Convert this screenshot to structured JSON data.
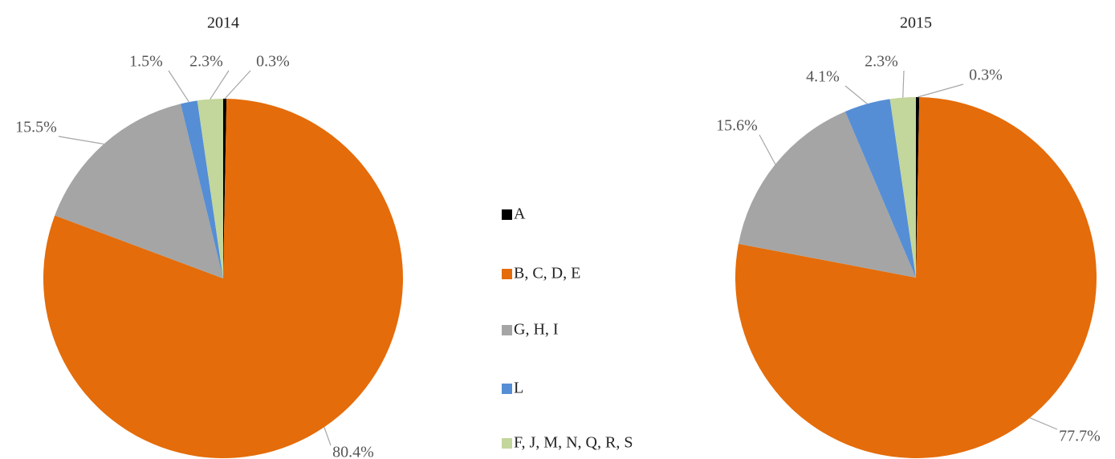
{
  "chart_data": [
    {
      "type": "pie",
      "title": "2014",
      "categories": [
        "A",
        "B, C, D, E",
        "G, H, I",
        "L",
        "F, J, M, N, Q, R, S"
      ],
      "values": [
        0.3,
        80.4,
        15.5,
        1.5,
        2.3
      ],
      "value_labels": [
        "0.3%",
        "80.4%",
        "15.5%",
        "1.5%",
        "2.3%"
      ],
      "colors": [
        "#000000",
        "#e46c0a",
        "#a5a5a5",
        "#558ed5",
        "#c3d69b"
      ],
      "legend": "center"
    },
    {
      "type": "pie",
      "title": "2015",
      "categories": [
        "A",
        "B, C, D, E",
        "G, H, I",
        "L",
        "F, J, M, N, Q, R, S"
      ],
      "values": [
        0.3,
        77.7,
        15.6,
        4.1,
        2.3
      ],
      "value_labels": [
        "0.3%",
        "77.7%",
        "15.6%",
        "4.1%",
        "2.3%"
      ],
      "colors": [
        "#000000",
        "#e46c0a",
        "#a5a5a5",
        "#558ed5",
        "#c3d69b"
      ]
    }
  ]
}
